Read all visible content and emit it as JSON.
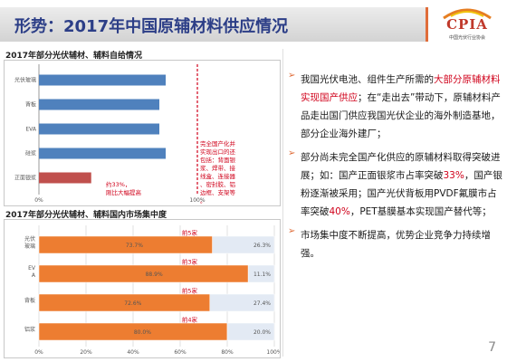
{
  "header": {
    "title": "形势：2017年中国原辅材料供应情况"
  },
  "logo": {
    "text": "CPIA",
    "subtitle": "中国光伏行业协会"
  },
  "chart1": {
    "title": "2017年部分光伏辅材、辅料自给情况",
    "note_red": "完全国产化并实现出口的还包括：背面银浆、焊带、接线盒、连接器、密封胶、铝边框、支架等。",
    "note_bar": "约33%，刚比大幅提高"
  },
  "chart2": {
    "title": "2017年部分光伏辅材、辅料国内市场集中度"
  },
  "chart_data": [
    {
      "type": "bar",
      "orientation": "horizontal",
      "categories": [
        "光伏玻璃",
        "背板",
        "EVA",
        "硅浆",
        "正面银浆"
      ],
      "values": [
        80,
        76,
        76,
        80,
        33
      ],
      "colors": [
        "#4f81bd",
        "#4f81bd",
        "#4f81bd",
        "#4f81bd",
        "#c0504d"
      ],
      "x_ticks": [
        "0%",
        "100%"
      ],
      "xlim": [
        0,
        100
      ],
      "grid": false
    },
    {
      "type": "bar",
      "orientation": "horizontal",
      "stacked": true,
      "categories": [
        "光伏玻璃",
        "EVA",
        "背板",
        "铝浆"
      ],
      "series": [
        {
          "values": [
            73.7,
            88.9,
            72.6,
            80.0
          ],
          "labels": [
            "73.7%",
            "88.9%",
            "72.6%",
            "80.0%"
          ],
          "color": "#ed7d31"
        },
        {
          "values": [
            26.3,
            11.1,
            27.4,
            20.0
          ],
          "labels": [
            "26.3%",
            "11.1%",
            "27.4%",
            "20.0%"
          ],
          "color": "#e3eaf4"
        }
      ],
      "group_labels": [
        "前5家",
        "前3家",
        "前5家",
        "前4家"
      ],
      "x_ticks": [
        "0%",
        "20%",
        "40%",
        "60%",
        "80%",
        "100%"
      ],
      "xlim": [
        0,
        100
      ],
      "grid": true
    }
  ],
  "bullets": [
    {
      "segments": [
        {
          "text": "我国光伏电池、组件生产所需的",
          "hl": false
        },
        {
          "text": "大部分原辅材料实现国产供应",
          "hl": true
        },
        {
          "text": "；在“走出去”带动下，原辅材料产品走出国门供应我国光伏企业的海外制造基地，部分企业海外建厂；",
          "hl": false
        }
      ]
    },
    {
      "segments": [
        {
          "text": "部分尚未完全国产化供应的原辅材料取得突破进展；如：国产正面银浆市占率突破",
          "hl": false
        },
        {
          "text": "33%",
          "hl": true
        },
        {
          "text": "，国产银粉逐渐被采用；国产光伏背板用PVDF氟膜市占率突破",
          "hl": false
        },
        {
          "text": "40%",
          "hl": true
        },
        {
          "text": "，PET基膜基本实现国产替代等；",
          "hl": false
        }
      ]
    },
    {
      "segments": [
        {
          "text": "市场集中度不断提高，优势企业竞争力持续增强。",
          "hl": false
        }
      ]
    }
  ],
  "page_number": "7"
}
